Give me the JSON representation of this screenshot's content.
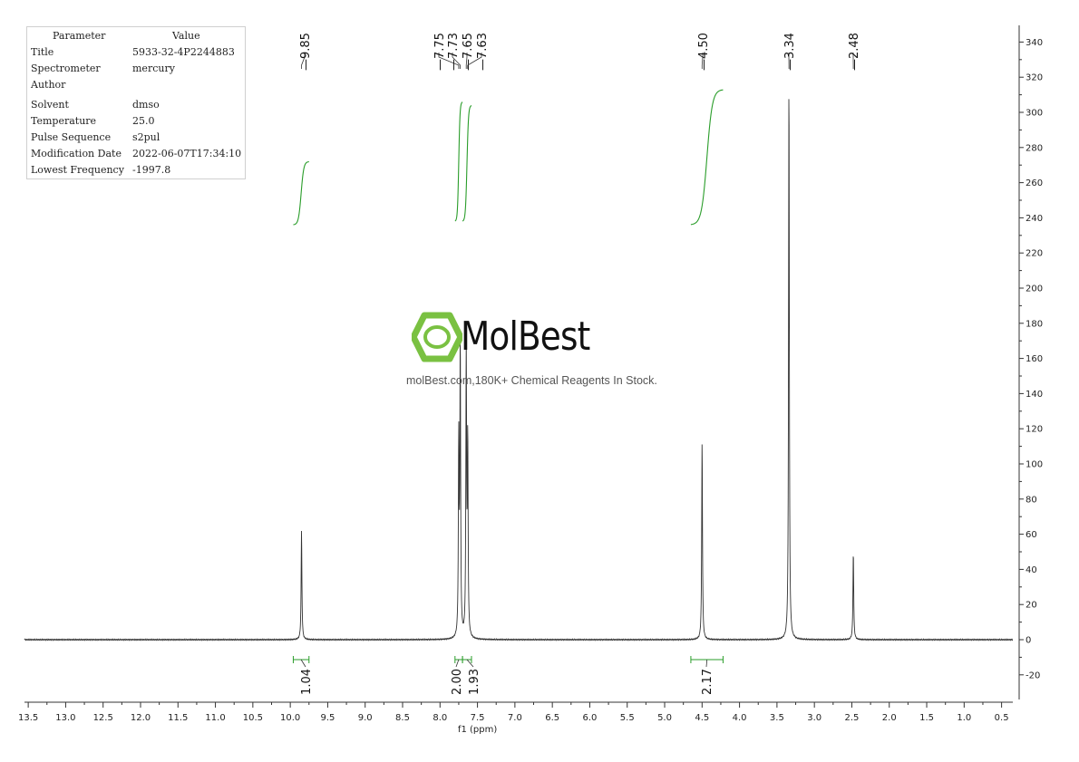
{
  "parameters": {
    "header": {
      "key": "Parameter",
      "value": "Value"
    },
    "rows": [
      {
        "key": "Title",
        "value": "5933-32-4P2244883"
      },
      {
        "key": "Spectrometer",
        "value": "mercury"
      },
      {
        "key": "Author",
        "value": ""
      },
      {
        "key": "Solvent",
        "value": "dmso"
      },
      {
        "key": "Temperature",
        "value": "25.0"
      },
      {
        "key": "Pulse Sequence",
        "value": "s2pul"
      },
      {
        "key": "Modification Date",
        "value": "2022-06-07T17:34:10"
      },
      {
        "key": "Lowest Frequency",
        "value": "-1997.8"
      }
    ]
  },
  "watermark": {
    "brand": "MolBest",
    "tagline": "molBest.com,180K+ Chemical Reagents In Stock.",
    "logo_icon": "benzene-ring-icon",
    "logo_color": "#7ac142"
  },
  "chart_data": {
    "type": "line",
    "title": "",
    "xlabel": "f1 (ppm)",
    "ylabel": "",
    "x_reversed": true,
    "xlim": [
      13.55,
      0.35
    ],
    "ylim": [
      -33,
      350
    ],
    "x_ticks": [
      "13.5",
      "13.0",
      "12.5",
      "12.0",
      "11.5",
      "11.0",
      "10.5",
      "10.0",
      "9.5",
      "9.0",
      "8.5",
      "8.0",
      "7.5",
      "7.0",
      "6.5",
      "6.0",
      "5.5",
      "5.0",
      "4.5",
      "4.0",
      "3.5",
      "3.0",
      "2.5",
      "2.0",
      "1.5",
      "1.0",
      "0.5"
    ],
    "y_ticks": [
      "-20",
      "0",
      "20",
      "40",
      "60",
      "80",
      "100",
      "120",
      "140",
      "160",
      "180",
      "200",
      "220",
      "240",
      "260",
      "280",
      "300",
      "320",
      "340"
    ],
    "peaks": [
      {
        "ppm": 9.85,
        "height": 62,
        "label": "9.85"
      },
      {
        "ppm": 7.75,
        "height": 110,
        "label": "7.75"
      },
      {
        "ppm": 7.73,
        "height": 166,
        "label": "7.73"
      },
      {
        "ppm": 7.65,
        "height": 163,
        "label": "7.65"
      },
      {
        "ppm": 7.63,
        "height": 110,
        "label": "7.63"
      },
      {
        "ppm": 4.5,
        "height": 113,
        "label": "4.50"
      },
      {
        "ppm": 3.34,
        "height": 320,
        "label": "3.34"
      },
      {
        "ppm": 2.48,
        "height": 50,
        "label": "2.48"
      }
    ],
    "integrals": [
      {
        "from": 9.96,
        "to": 9.75,
        "value": "1.04",
        "curve_low": 236,
        "curve_high": 272
      },
      {
        "from": 7.8,
        "to": 7.7,
        "value": "2.00",
        "curve_low": 238,
        "curve_high": 306
      },
      {
        "from": 7.7,
        "to": 7.58,
        "value": "1.93",
        "curve_low": 238,
        "curve_high": 304
      },
      {
        "from": 4.65,
        "to": 4.22,
        "value": "2.17",
        "curve_low": 236,
        "curve_high": 313
      }
    ],
    "integral_color": "#2a9d2a",
    "line_color": "#333333"
  }
}
